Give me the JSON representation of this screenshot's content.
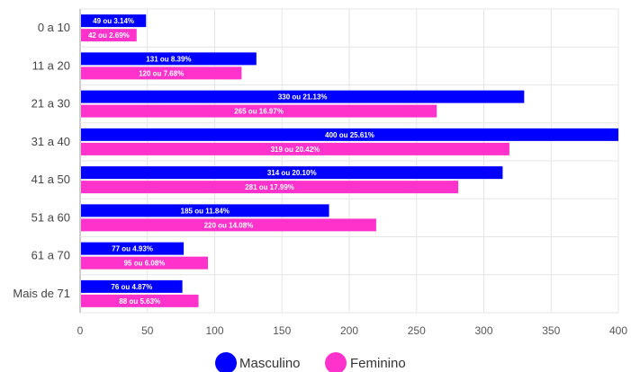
{
  "chart_data": {
    "type": "bar",
    "orientation": "horizontal",
    "categories": [
      "0 a 10",
      "11 a 20",
      "21 a 30",
      "31 a 40",
      "41 a 50",
      "51 a 60",
      "61 a 70",
      "Mais de 71"
    ],
    "series": [
      {
        "name": "Masculino",
        "color": "#0000ff",
        "values": [
          49,
          131,
          330,
          400,
          314,
          185,
          77,
          76
        ],
        "labels": [
          "49 ou 3.14%",
          "131 ou 8.39%",
          "330 ou 21.13%",
          "400 ou 25.61%",
          "314 ou 20.10%",
          "185 ou 11.84%",
          "77 ou 4.93%",
          "76 ou 4.87%"
        ]
      },
      {
        "name": "Feminino",
        "color": "#ff33cc",
        "values": [
          42,
          120,
          265,
          319,
          281,
          220,
          95,
          88
        ],
        "labels": [
          "42 ou 2.69%",
          "120 ou 7.68%",
          "265 ou 16.97%",
          "319 ou 20.42%",
          "281 ou 17.99%",
          "220 ou 14.08%",
          "95 ou 6.08%",
          "88 ou 5.63%"
        ]
      }
    ],
    "xlim": [
      0,
      400
    ],
    "xticks": [
      0,
      50,
      100,
      150,
      200,
      250,
      300,
      350,
      400
    ],
    "grid": true,
    "legend": "bottom"
  }
}
